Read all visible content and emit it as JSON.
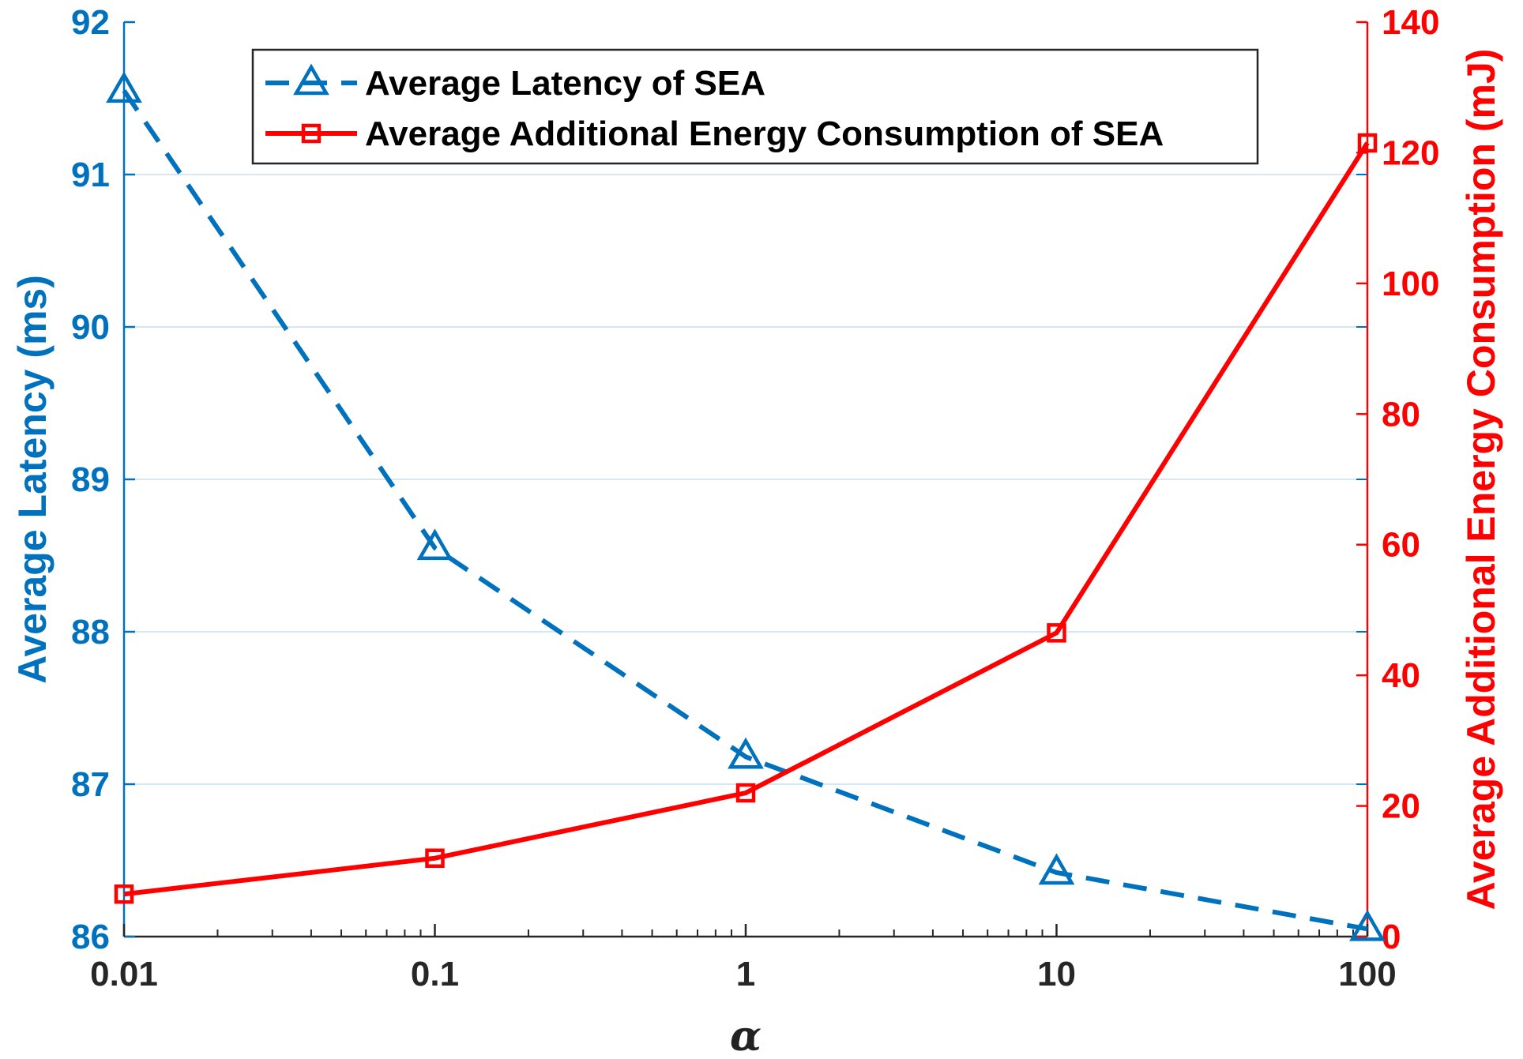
{
  "chart_data": {
    "type": "line",
    "xscale": "log",
    "x": [
      0.01,
      0.1,
      1,
      10,
      100
    ],
    "xticks": [
      "0.01",
      "0.1",
      "1",
      "10",
      "100"
    ],
    "xlabel": "α",
    "xlim": [
      0.01,
      100
    ],
    "series": [
      {
        "name": "Average Latency of SEA",
        "axis": "left",
        "values": [
          91.55,
          88.55,
          87.18,
          86.42,
          86.05
        ],
        "color": "#0072BD",
        "line_style": "dashed",
        "marker": "triangle"
      },
      {
        "name": "Average Additional Energy Consumption of SEA",
        "axis": "right",
        "values": [
          6.5,
          12,
          22,
          46.5,
          121.5
        ],
        "color": "#FF0000",
        "line_style": "solid",
        "marker": "square"
      }
    ],
    "y_left": {
      "label": "Average Latency (ms)",
      "lim": [
        86,
        92
      ],
      "ticks": [
        "86",
        "87",
        "88",
        "89",
        "90",
        "91",
        "92"
      ],
      "color": "#0072BD"
    },
    "y_right": {
      "label": "Average Additional Energy Consumption (mJ)",
      "lim": [
        0,
        140
      ],
      "ticks": [
        "0",
        "20",
        "40",
        "60",
        "80",
        "100",
        "120",
        "140"
      ],
      "color": "#FF0000"
    },
    "grid": "y-major",
    "legend_position": "top"
  }
}
